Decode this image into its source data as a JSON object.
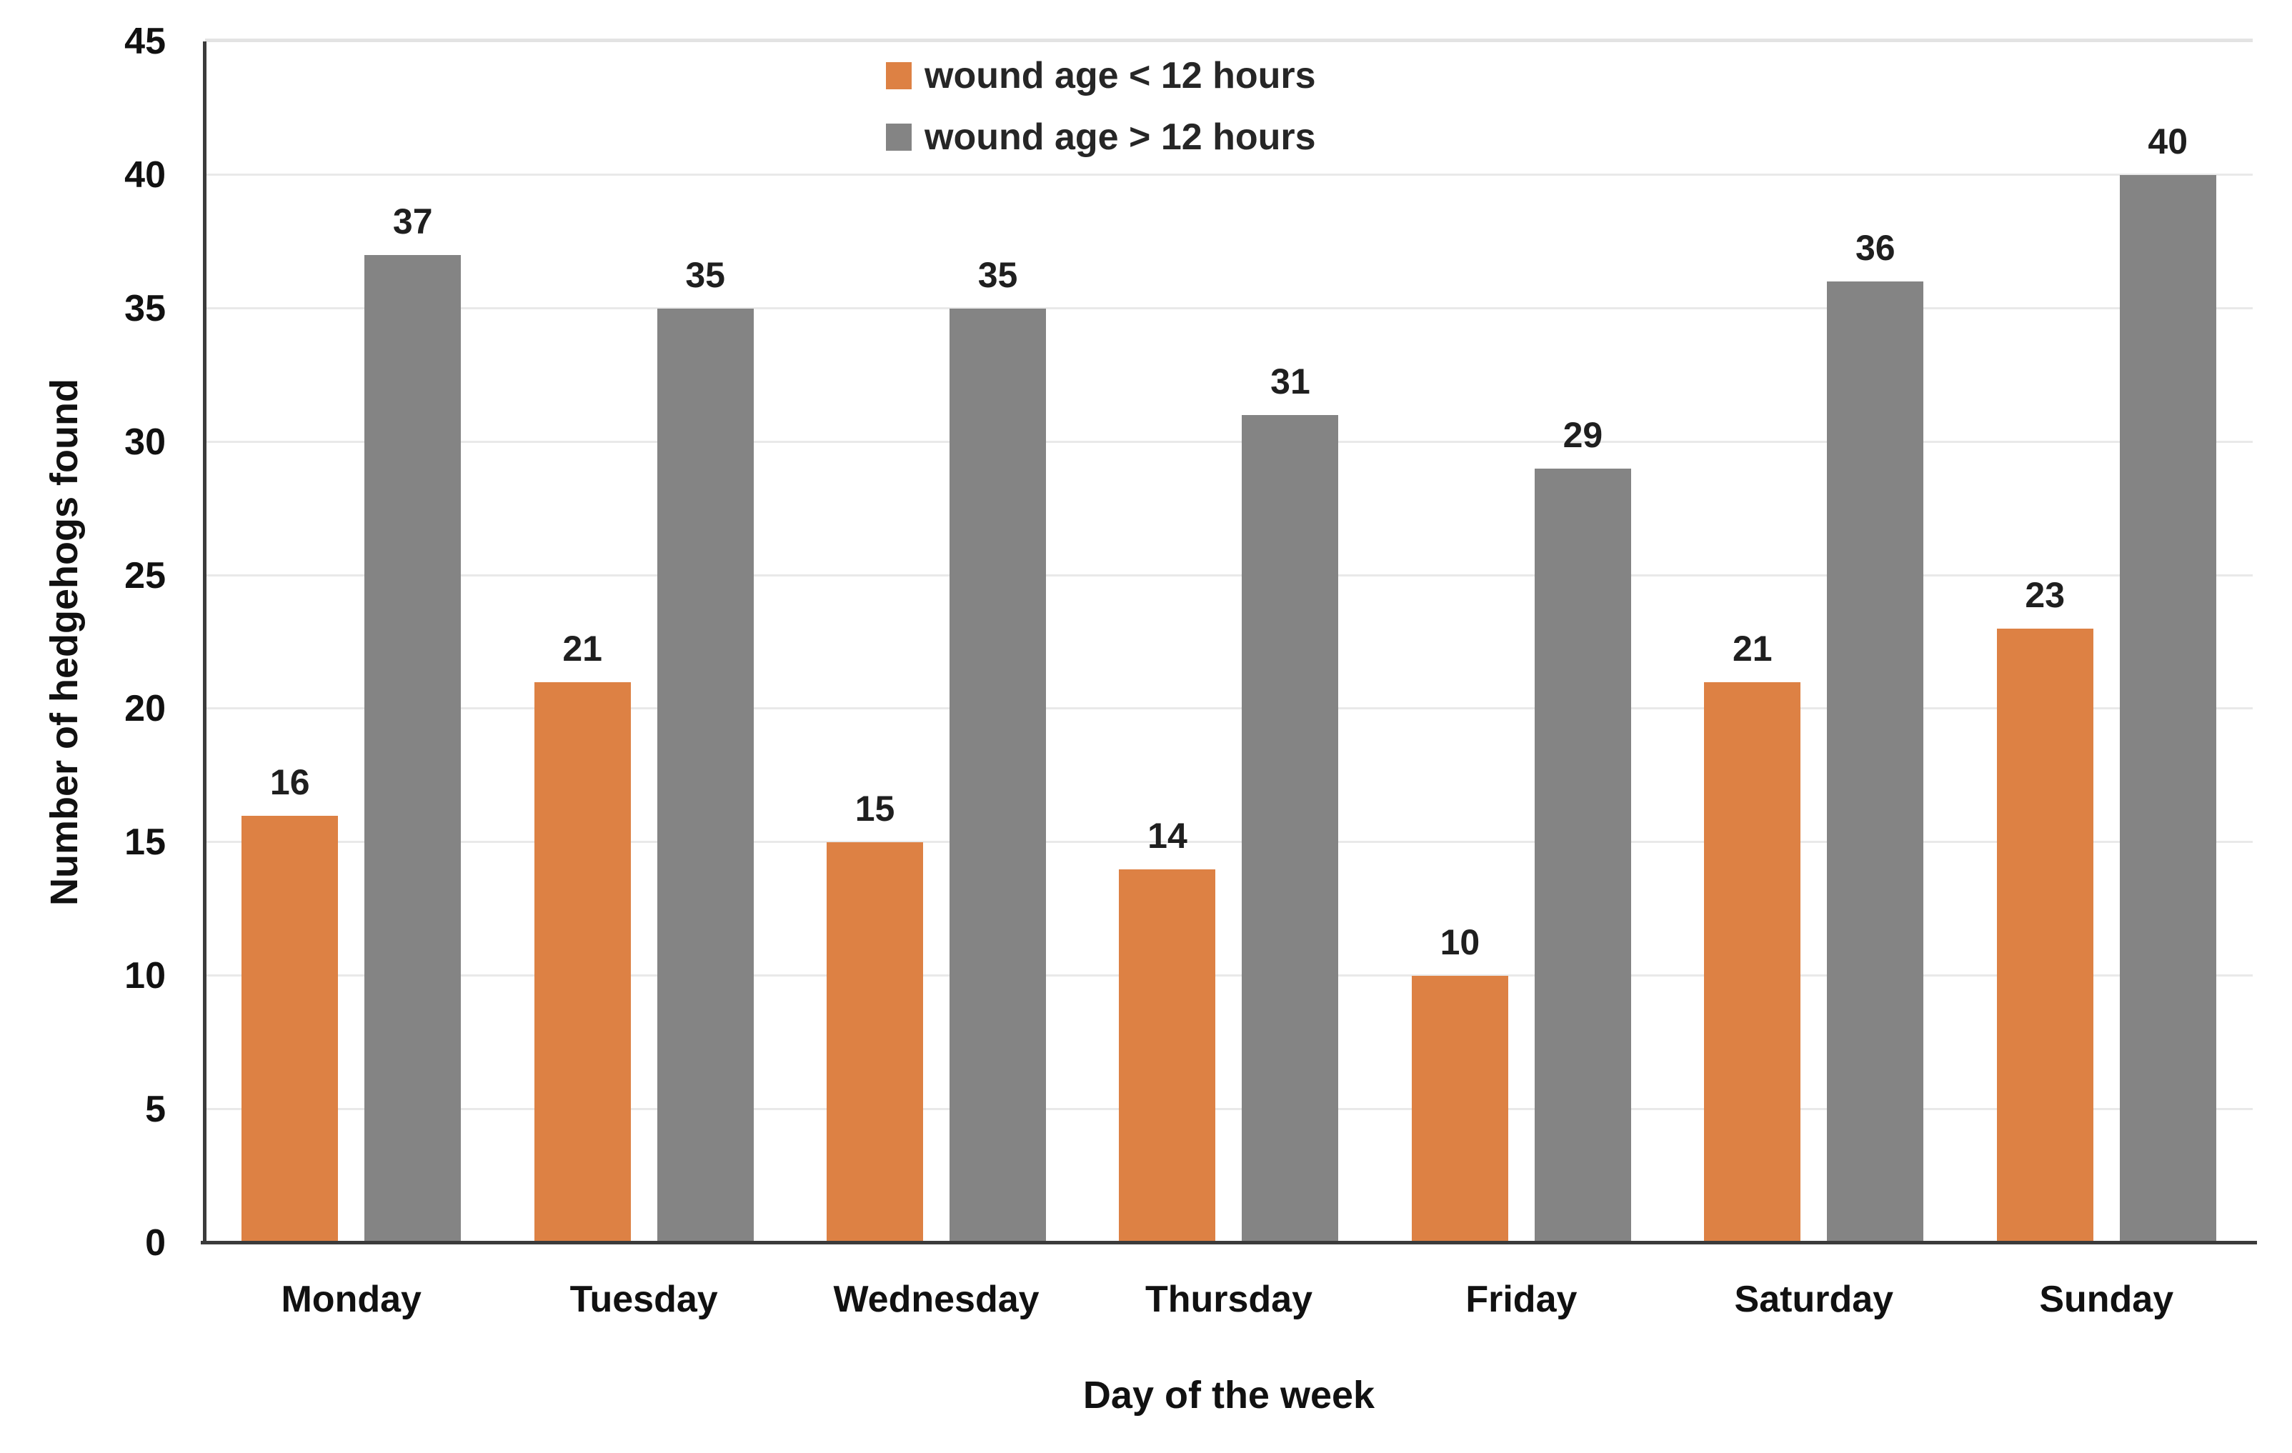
{
  "chart_data": {
    "type": "bar",
    "title": "",
    "categories": [
      "Monday",
      "Tuesday",
      "Wednesday",
      "Thursday",
      "Friday",
      "Saturday",
      "Sunday"
    ],
    "series": [
      {
        "name": "wound age < 12 hours",
        "color": "#DD8144",
        "values": [
          16,
          21,
          15,
          14,
          10,
          21,
          23
        ]
      },
      {
        "name": "wound age > 12 hours",
        "color": "#848484",
        "values": [
          37,
          35,
          35,
          31,
          29,
          36,
          40
        ]
      }
    ],
    "xlabel": "Day of the week",
    "ylabel": "Number of hedgehogs found",
    "ylim": [
      0,
      45
    ],
    "yticks": [
      0,
      5,
      10,
      15,
      20,
      25,
      30,
      35,
      40,
      45
    ],
    "grid": true,
    "data_labels": true,
    "legend_position": "top-inside"
  },
  "colors": {
    "grid": "#E9E9E9",
    "grid_top": "#E3E3E3",
    "axis": "#3B3B3B",
    "text": "#111111",
    "value_label": "#1F1F1F",
    "legend_text": "#262626",
    "background": "#FFFFFF"
  }
}
